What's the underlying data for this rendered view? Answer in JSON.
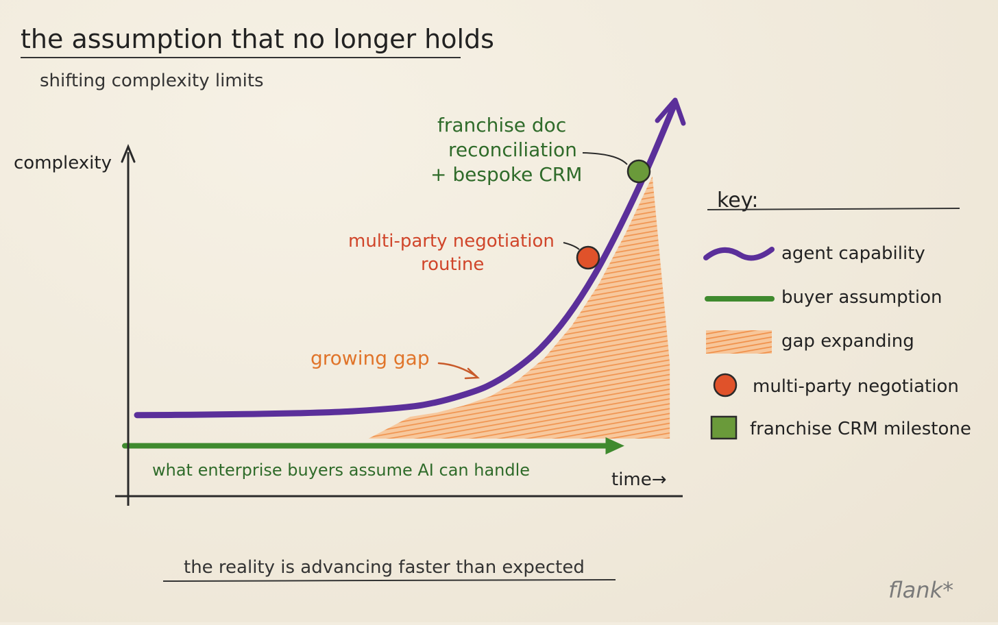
{
  "title": "the assumption that no longer holds",
  "subtitle": "shifting complexity limits",
  "footer_note": "the reality is advancing faster than expected",
  "brand": "flank*",
  "colors": {
    "agent": "#5b2f9a",
    "buyer": "#3f8a2e",
    "gap": "#f0904a",
    "negotiation": "#e0522a",
    "crm": "#6a9a3a",
    "ink": "#2a2a2a",
    "green_text": "#2f6b2a",
    "red_text": "#d0452a",
    "orange_text": "#e0742a"
  },
  "chart_data": {
    "type": "line",
    "xlabel": "time",
    "ylabel": "complexity",
    "axis_arrow_label": "time→",
    "series": [
      {
        "name": "agent capability",
        "x": [
          0,
          0.1,
          0.2,
          0.3,
          0.4,
          0.5,
          0.55,
          0.6,
          0.65,
          0.7,
          0.75,
          0.8,
          0.85,
          0.9,
          0.95,
          1.0
        ],
        "values": [
          0.02,
          0.021,
          0.023,
          0.026,
          0.032,
          0.045,
          0.058,
          0.08,
          0.11,
          0.16,
          0.23,
          0.33,
          0.46,
          0.62,
          0.8,
          1.0
        ]
      },
      {
        "name": "buyer assumption",
        "x": [
          0,
          0.9
        ],
        "values": [
          -0.07,
          -0.07
        ]
      }
    ],
    "annotations": {
      "buyer_line_label": "what enterprise buyers assume AI can handle",
      "gap_label": "growing gap",
      "negotiation_label_line1": "multi-party negotiation",
      "negotiation_label_line2": "routine",
      "crm_label_line1": "franchise doc",
      "crm_label_line2": "reconciliation",
      "crm_label_line3": "+ bespoke CRM"
    },
    "legend": {
      "title": "key:",
      "placement": "right",
      "items": [
        {
          "label": "agent capability",
          "icon": "squiggle-line-icon"
        },
        {
          "label": "buyer assumption",
          "icon": "straight-line-icon"
        },
        {
          "label": "gap expanding",
          "icon": "hatched-fill-icon"
        },
        {
          "label": "multi-party negotiation",
          "icon": "circle-dot-icon"
        },
        {
          "label": "franchise CRM milestone",
          "icon": "square-icon"
        }
      ]
    }
  }
}
